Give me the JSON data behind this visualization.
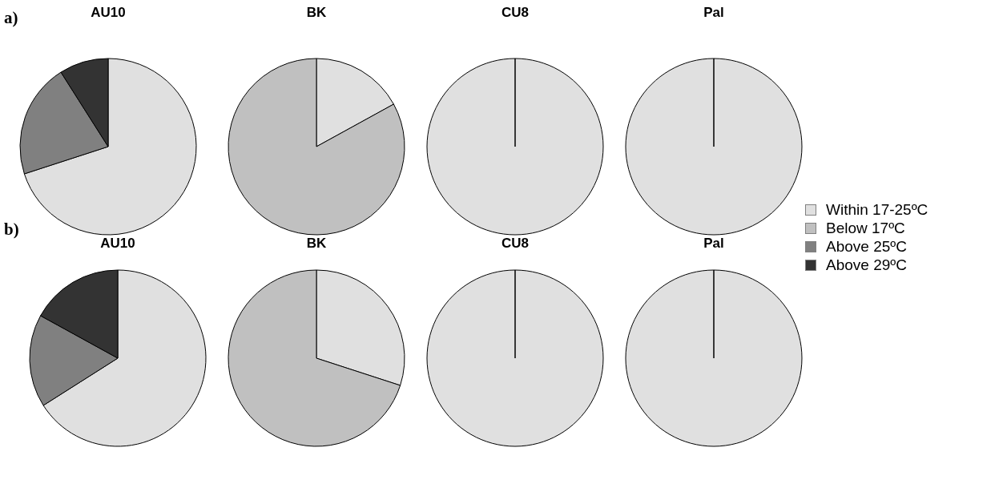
{
  "chart_data": [
    {
      "type": "pie",
      "title": "AU10",
      "annotations": [
        "a)"
      ],
      "legend": "right",
      "categories": [
        "Within 17-25ºC",
        "Below 17ºC",
        "Above 25ºC",
        "Above 29ºC"
      ],
      "values": [
        70,
        0,
        21,
        9
      ],
      "colors": [
        "#e0e0e0",
        "#c0c0c0",
        "#808080",
        "#333333"
      ]
    },
    {
      "type": "pie",
      "title": "BK",
      "categories": [
        null,
        null,
        null,
        null
      ],
      "values": [
        17,
        83,
        0,
        0
      ],
      "colors": [
        "#e0e0e0",
        "#c0c0c0",
        "#808080",
        "#333333"
      ]
    },
    {
      "type": "pie",
      "title": "CU8",
      "categories": [
        null,
        null,
        null,
        null
      ],
      "values": [
        100,
        0,
        0,
        0
      ],
      "colors": [
        "#e0e0e0",
        "#c0c0c0",
        "#808080",
        "#333333"
      ]
    },
    {
      "type": "pie",
      "title": "Pal",
      "categories": [
        null,
        null,
        null,
        null
      ],
      "values": [
        100,
        0,
        0,
        0
      ],
      "colors": [
        "#e0e0e0",
        "#c0c0c0",
        "#808080",
        "#333333"
      ]
    },
    {
      "type": "pie",
      "title": "AU10",
      "annotations": [
        "b)"
      ],
      "categories": [
        null,
        null,
        null,
        null
      ],
      "values": [
        66,
        0,
        17,
        17
      ],
      "colors": [
        "#e0e0e0",
        "#c0c0c0",
        "#808080",
        "#333333"
      ]
    },
    {
      "type": "pie",
      "title": "BK",
      "categories": [
        null,
        null,
        null,
        null
      ],
      "values": [
        30,
        70,
        0,
        0
      ],
      "colors": [
        "#e0e0e0",
        "#c0c0c0",
        "#808080",
        "#333333"
      ]
    },
    {
      "type": "pie",
      "title": "CU8",
      "categories": [
        null,
        null,
        null,
        null
      ],
      "values": [
        100,
        0,
        0,
        0
      ],
      "colors": [
        "#e0e0e0",
        "#c0c0c0",
        "#808080",
        "#333333"
      ]
    },
    {
      "type": "pie",
      "title": "Pal",
      "categories": [
        null,
        null,
        null,
        null
      ],
      "values": [
        100,
        0,
        0,
        0
      ],
      "colors": [
        "#e0e0e0",
        "#c0c0c0",
        "#808080",
        "#333333"
      ]
    }
  ]
}
